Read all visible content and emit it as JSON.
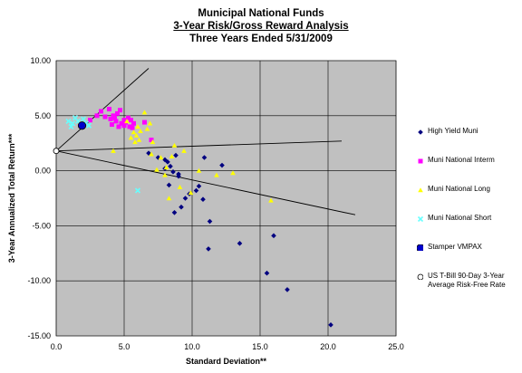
{
  "chart_data": {
    "type": "scatter",
    "title": "Municipal National Funds",
    "subtitle": "3-Year Risk/Gross Reward Analysis",
    "subtitle2": "Three Years Ended 5/31/2009",
    "xlabel": "Standard Deviation**",
    "ylabel": "3-Year Annualized Total Return***",
    "xlim": [
      0,
      25
    ],
    "ylim": [
      -15,
      10
    ],
    "xticks": [
      "0.0",
      "5.0",
      "10.0",
      "15.0",
      "20.0",
      "25.0"
    ],
    "yticks": [
      "10.00",
      "5.00",
      "0.00",
      "-5.00",
      "-10.00",
      "-15.00"
    ],
    "grid": true,
    "legend_position": "right",
    "plot_bg": "#c0c0c0",
    "series": [
      {
        "name": "High Yield Muni",
        "marker": "diamond",
        "color": "#000080",
        "points": [
          [
            6.8,
            1.6
          ],
          [
            7.5,
            1.2
          ],
          [
            8.0,
            1.0
          ],
          [
            8.2,
            0.8
          ],
          [
            8.4,
            0.4
          ],
          [
            8.6,
            -0.1
          ],
          [
            9.0,
            -0.5
          ],
          [
            8.3,
            -1.3
          ],
          [
            8.7,
            -3.8
          ],
          [
            9.2,
            -3.3
          ],
          [
            9.5,
            -2.5
          ],
          [
            9.8,
            -2.1
          ],
          [
            10.3,
            -1.8
          ],
          [
            10.5,
            -1.4
          ],
          [
            10.8,
            -2.6
          ],
          [
            10.9,
            1.2
          ],
          [
            11.3,
            -4.6
          ],
          [
            11.2,
            -7.1
          ],
          [
            12.2,
            0.5
          ],
          [
            13.5,
            -6.6
          ],
          [
            15.5,
            -9.3
          ],
          [
            16.0,
            -5.9
          ],
          [
            17.0,
            -10.8
          ],
          [
            20.2,
            -14.0
          ],
          [
            8.0,
            0.2
          ],
          [
            8.8,
            1.4
          ],
          [
            9.0,
            -0.3
          ]
        ]
      },
      {
        "name": "Muni National Interm",
        "marker": "square",
        "color": "#ff00ff",
        "points": [
          [
            2.5,
            4.6
          ],
          [
            3.0,
            5.0
          ],
          [
            3.3,
            5.4
          ],
          [
            3.6,
            4.9
          ],
          [
            3.9,
            5.6
          ],
          [
            4.0,
            4.7
          ],
          [
            4.1,
            4.2
          ],
          [
            4.2,
            5.0
          ],
          [
            4.4,
            4.5
          ],
          [
            4.5,
            5.2
          ],
          [
            4.6,
            4.0
          ],
          [
            4.7,
            5.5
          ],
          [
            4.8,
            4.3
          ],
          [
            5.0,
            4.6
          ],
          [
            5.0,
            4.1
          ],
          [
            5.1,
            4.4
          ],
          [
            5.3,
            4.8
          ],
          [
            5.4,
            4.0
          ],
          [
            5.5,
            4.6
          ],
          [
            5.6,
            3.9
          ],
          [
            5.7,
            4.3
          ],
          [
            6.5,
            4.4
          ],
          [
            7.0,
            2.8
          ],
          [
            4.3,
            4.8
          ]
        ]
      },
      {
        "name": "Muni National Long",
        "marker": "triangle",
        "color": "#ffff00",
        "points": [
          [
            4.2,
            1.8
          ],
          [
            5.2,
            4.5
          ],
          [
            5.5,
            3.0
          ],
          [
            5.7,
            3.5
          ],
          [
            5.8,
            2.6
          ],
          [
            5.9,
            3.2
          ],
          [
            6.0,
            4.0
          ],
          [
            6.1,
            2.8
          ],
          [
            6.2,
            3.6
          ],
          [
            6.5,
            5.3
          ],
          [
            6.7,
            3.8
          ],
          [
            6.9,
            4.3
          ],
          [
            7.1,
            2.6
          ],
          [
            7.4,
            0.1
          ],
          [
            7.7,
            1.2
          ],
          [
            8.0,
            -0.4
          ],
          [
            8.1,
            0.3
          ],
          [
            8.3,
            -2.5
          ],
          [
            8.5,
            1.3
          ],
          [
            8.7,
            2.3
          ],
          [
            9.1,
            -1.5
          ],
          [
            9.4,
            1.8
          ],
          [
            9.9,
            -2.0
          ],
          [
            10.5,
            0.0
          ],
          [
            11.8,
            -0.4
          ],
          [
            13.0,
            -0.2
          ],
          [
            15.8,
            -2.7
          ],
          [
            7.0,
            1.5
          ]
        ]
      },
      {
        "name": "Muni National Short",
        "marker": "cross",
        "color": "#66ffff",
        "points": [
          [
            0.9,
            4.5
          ],
          [
            1.2,
            4.3
          ],
          [
            1.4,
            4.8
          ],
          [
            1.6,
            4.5
          ],
          [
            1.8,
            4.2
          ],
          [
            2.0,
            4.7
          ],
          [
            2.2,
            4.3
          ],
          [
            2.4,
            4.1
          ],
          [
            1.1,
            4.0
          ],
          [
            6.0,
            -1.8
          ]
        ]
      },
      {
        "name": "Stamper VMPAX",
        "marker": "circle",
        "color": "#0000cc",
        "points": [
          [
            1.9,
            4.1
          ]
        ]
      },
      {
        "name": "US T-Bill 90-Day 3-Year Average Risk-Free Rate",
        "marker": "open-circle",
        "color": "#ffffff",
        "points": [
          [
            0.0,
            1.8
          ]
        ]
      }
    ],
    "lines": [
      [
        [
          0.0,
          1.8
        ],
        [
          6.8,
          9.3
        ]
      ],
      [
        [
          0.0,
          1.8
        ],
        [
          21.0,
          2.7
        ]
      ],
      [
        [
          0.0,
          1.8
        ],
        [
          22.0,
          -4.0
        ]
      ]
    ]
  }
}
